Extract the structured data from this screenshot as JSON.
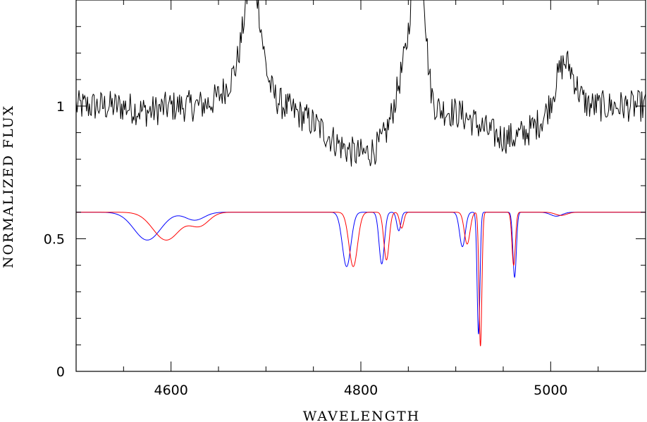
{
  "chart_data": {
    "type": "line",
    "title": "",
    "xlabel": "WAVELENGTH",
    "ylabel": "NORMALIZED FLUX",
    "xlim": [
      4500,
      5100
    ],
    "ylim": [
      0,
      1.4
    ],
    "x_major_ticks": [
      4600,
      4800,
      5000
    ],
    "x_minor_step": 50,
    "y_major_ticks": [
      0,
      0.5,
      1
    ],
    "y_minor_step": 0.1,
    "x_tick_labels": [
      "4600",
      "4800",
      "5000"
    ],
    "y_tick_labels": [
      "0",
      "0.5",
      "1"
    ],
    "grid": false,
    "legend": "none",
    "series": [
      {
        "color": "#000000",
        "description": "observed spectrum",
        "continuum": 1.0,
        "noise_amplitude": 0.06,
        "features": [
          {
            "center": 4575,
            "width": 12,
            "depth": -0.02
          },
          {
            "center": 4686,
            "width": 8,
            "depth": 0.35
          },
          {
            "center": 4680,
            "width": 18,
            "depth": 0.15
          },
          {
            "center": 4800,
            "width": 35,
            "depth": -0.18
          },
          {
            "center": 4861,
            "width": 6,
            "depth": 0.55
          },
          {
            "center": 4850,
            "width": 12,
            "depth": 0.25
          },
          {
            "center": 4955,
            "width": 30,
            "depth": -0.12
          },
          {
            "center": 5015,
            "width": 10,
            "depth": 0.18
          }
        ]
      },
      {
        "color": "#0000ff",
        "description": "model spectrum 1",
        "continuum": 0.6,
        "lines": [
          {
            "center": 4575,
            "width": 14,
            "depth": 0.105
          },
          {
            "center": 4625,
            "width": 10,
            "depth": 0.03
          },
          {
            "center": 4785,
            "width": 4.5,
            "depth": 0.205
          },
          {
            "center": 4822,
            "width": 2.8,
            "depth": 0.195
          },
          {
            "center": 4840,
            "width": 2.2,
            "depth": 0.07
          },
          {
            "center": 4907,
            "width": 3.0,
            "depth": 0.13
          },
          {
            "center": 4924,
            "width": 1.5,
            "depth": 0.46
          },
          {
            "center": 4962,
            "width": 1.8,
            "depth": 0.245
          },
          {
            "center": 5006,
            "width": 6,
            "depth": 0.015
          }
        ]
      },
      {
        "color": "#ff0000",
        "description": "model spectrum 2",
        "continuum": 0.6,
        "lines": [
          {
            "center": 4595,
            "width": 14,
            "depth": 0.105
          },
          {
            "center": 4630,
            "width": 10,
            "depth": 0.05
          },
          {
            "center": 4792,
            "width": 4.5,
            "depth": 0.205
          },
          {
            "center": 4827,
            "width": 2.8,
            "depth": 0.18
          },
          {
            "center": 4843,
            "width": 2.2,
            "depth": 0.06
          },
          {
            "center": 4912,
            "width": 3.0,
            "depth": 0.12
          },
          {
            "center": 4926,
            "width": 1.5,
            "depth": 0.505
          },
          {
            "center": 4961,
            "width": 1.8,
            "depth": 0.2
          },
          {
            "center": 5011,
            "width": 6,
            "depth": 0.012
          }
        ]
      }
    ]
  }
}
